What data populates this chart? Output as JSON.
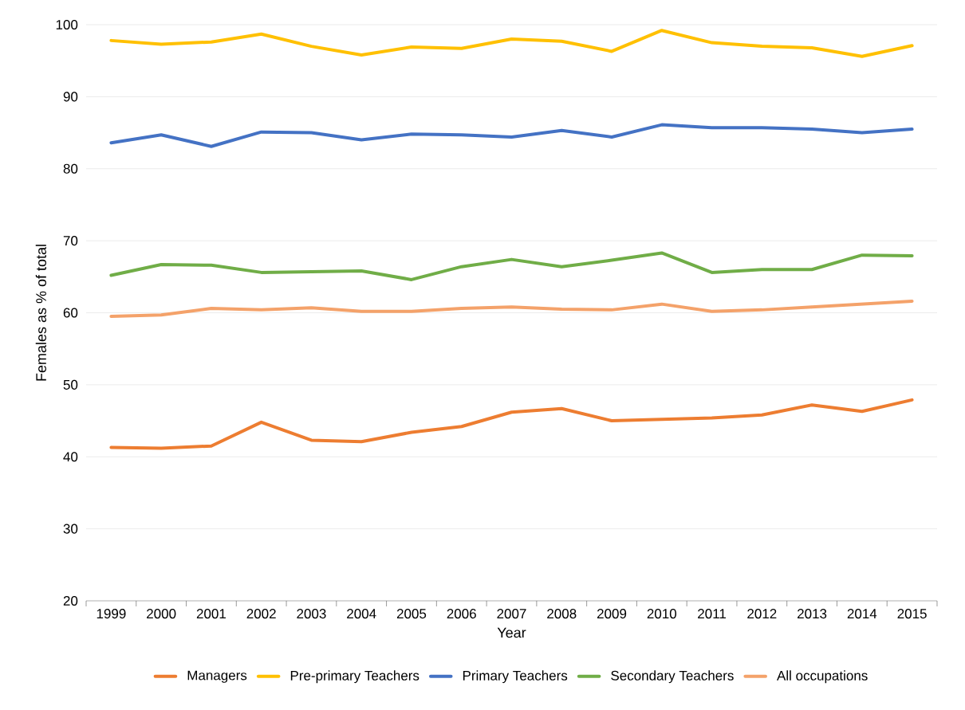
{
  "chart_data": {
    "type": "line",
    "xlabel": "Year",
    "ylabel": "Females as % of total",
    "categories": [
      "1999",
      "2000",
      "2001",
      "2002",
      "2003",
      "2004",
      "2005",
      "2006",
      "2007",
      "2008",
      "2009",
      "2010",
      "2011",
      "2012",
      "2013",
      "2014",
      "2015"
    ],
    "series": [
      {
        "name": "Managers",
        "color": "#ed7d31",
        "values": [
          41.3,
          41.2,
          41.5,
          44.8,
          42.3,
          42.1,
          43.4,
          44.2,
          46.2,
          46.7,
          45.0,
          45.2,
          45.4,
          45.8,
          47.2,
          46.3,
          47.9
        ]
      },
      {
        "name": "Pre-primary Teachers",
        "color": "#ffc000",
        "values": [
          97.8,
          97.3,
          97.6,
          98.7,
          97.0,
          95.8,
          96.9,
          96.7,
          98.0,
          97.7,
          96.3,
          99.2,
          97.5,
          97.0,
          96.8,
          95.6,
          97.1
        ]
      },
      {
        "name": "Primary Teachers",
        "color": "#4472c4",
        "values": [
          83.6,
          84.7,
          83.1,
          85.1,
          85.0,
          84.0,
          84.8,
          84.7,
          84.4,
          85.3,
          84.4,
          86.1,
          85.7,
          85.7,
          85.5,
          85.0,
          85.5
        ]
      },
      {
        "name": "Secondary Teachers",
        "color": "#70ad47",
        "values": [
          65.2,
          66.7,
          66.6,
          65.6,
          65.7,
          65.8,
          64.6,
          66.4,
          67.4,
          66.4,
          67.3,
          68.3,
          65.6,
          66.0,
          66.0,
          68.0,
          67.9
        ]
      },
      {
        "name": "All occupations",
        "color": "#f4a26a",
        "values": [
          59.5,
          59.7,
          60.6,
          60.4,
          60.7,
          60.2,
          60.2,
          60.6,
          60.8,
          60.5,
          60.4,
          61.2,
          60.2,
          60.4,
          60.8,
          61.2,
          61.6
        ]
      }
    ],
    "ylim": [
      20,
      100
    ],
    "yticks": [
      20,
      30,
      40,
      50,
      60,
      70,
      80,
      90,
      100
    ],
    "grid": "y",
    "legend": "bottom",
    "marker": "none",
    "line_style": "solid"
  }
}
